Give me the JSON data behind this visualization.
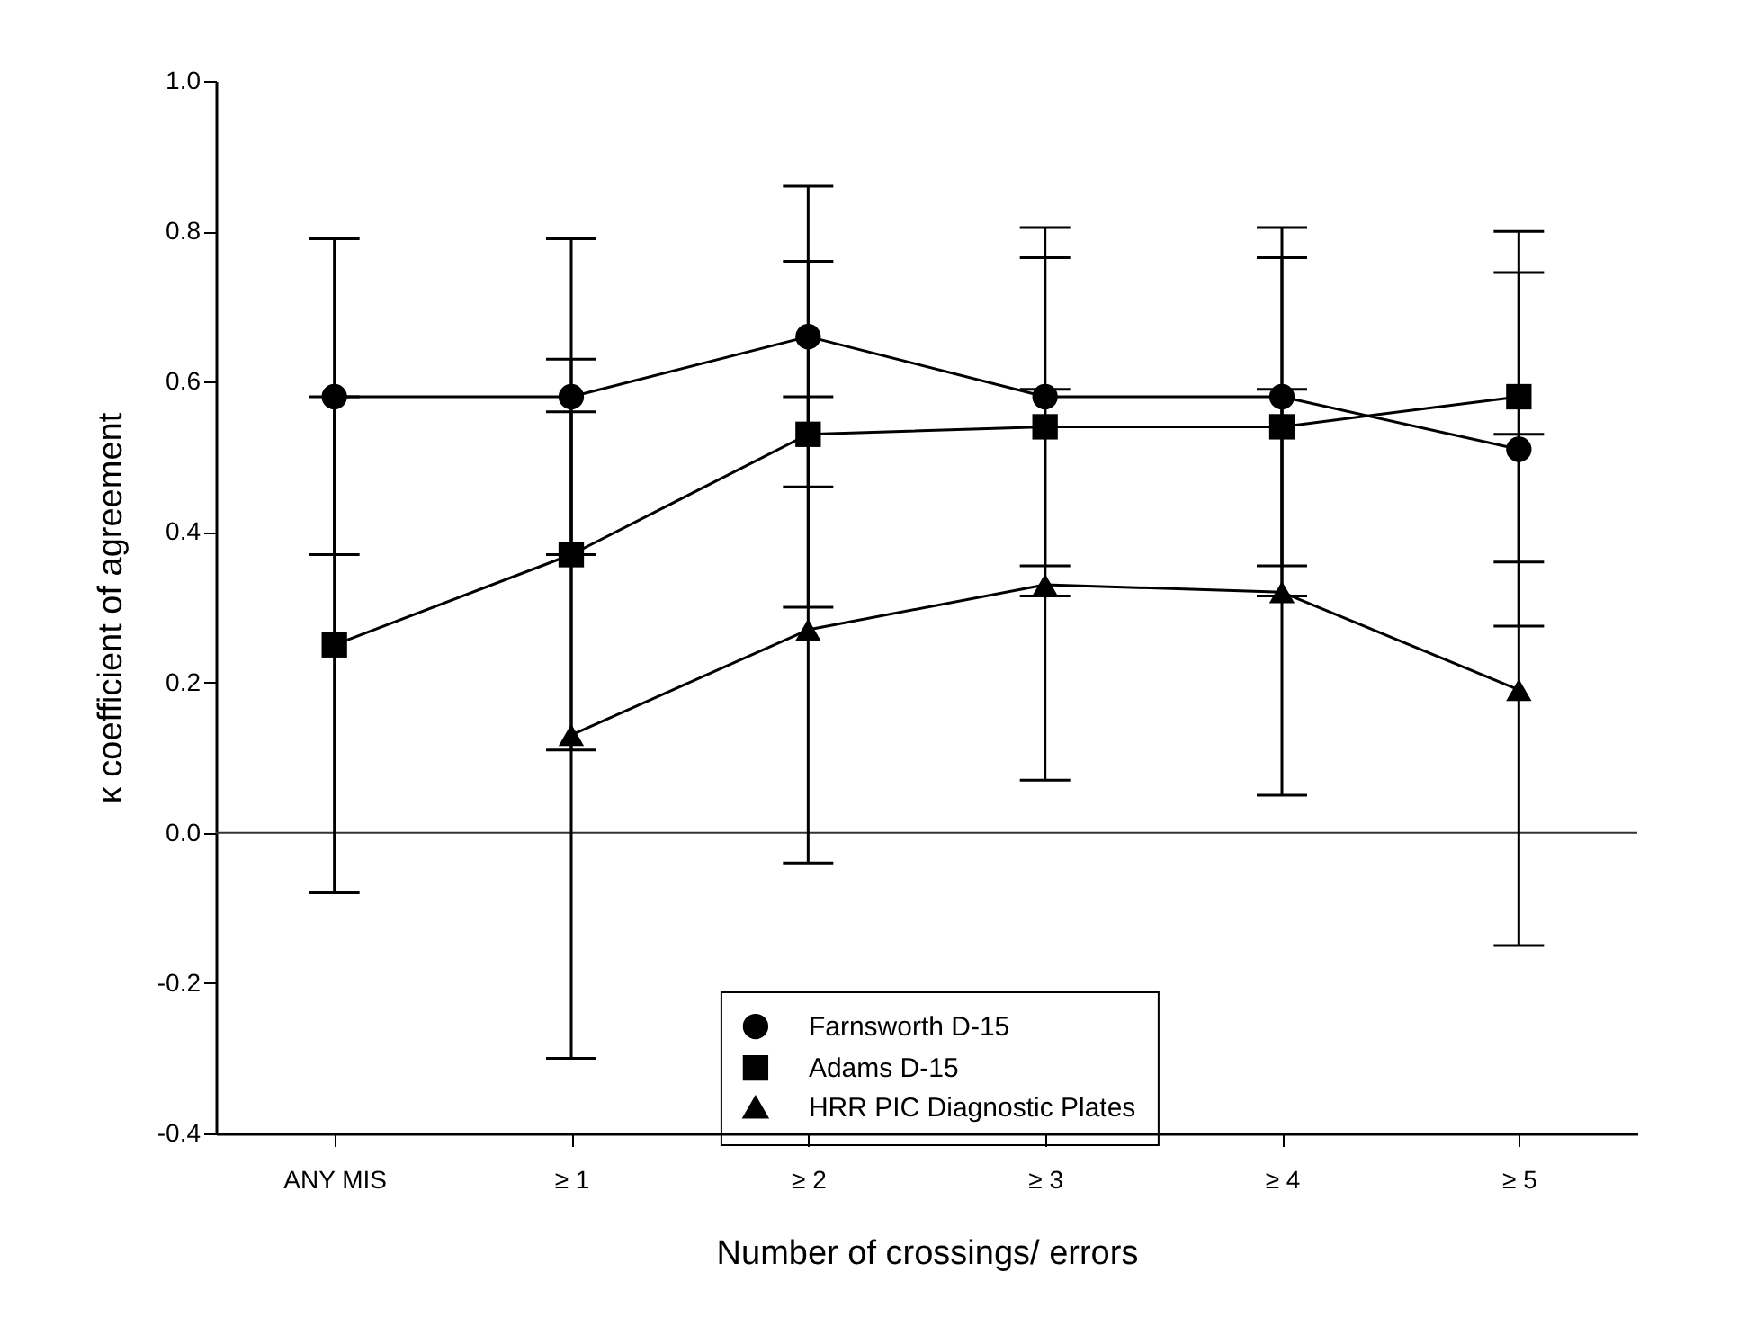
{
  "chart_data": {
    "type": "line",
    "xlabel": "Number of crossings/ errors",
    "ylabel": "κ coefficient of agreement",
    "categories": [
      "ANY MIS",
      "≥ 1",
      "≥ 2",
      "≥ 3",
      "≥ 4",
      "≥ 5"
    ],
    "series": [
      {
        "name": "Farnsworth D-15",
        "color": "#000000",
        "marker": "circle",
        "values": [
          0.58,
          0.58,
          0.66,
          0.58,
          0.58,
          0.51
        ],
        "errors": [
          0.21,
          0.21,
          0.2,
          0.225,
          0.225,
          0.235
        ]
      },
      {
        "name": "Adams  D-15",
        "color": "#000000",
        "marker": "square",
        "values": [
          0.25,
          0.37,
          0.53,
          0.54,
          0.54,
          0.58
        ],
        "errors": [
          0.33,
          0.26,
          0.23,
          0.225,
          0.225,
          0.22
        ]
      },
      {
        "name": "HRR PIC Diagnostic Plates",
        "color": "#000000",
        "marker": "triangle",
        "values": [
          null,
          0.13,
          0.27,
          0.33,
          0.32,
          0.19
        ],
        "errors": [
          null,
          0.43,
          0.31,
          0.26,
          0.27,
          0.34
        ]
      }
    ],
    "ylim": [
      -0.4,
      1.0
    ],
    "yticks": [
      {
        "value": -0.4,
        "label": "-0.4"
      },
      {
        "value": -0.2,
        "label": "-0.2"
      },
      {
        "value": 0,
        "label": "0.0"
      },
      {
        "value": 0.2,
        "label": "0.2"
      },
      {
        "value": 0.4,
        "label": "0.4"
      },
      {
        "value": 0.6,
        "label": "0.6"
      },
      {
        "value": 0.8,
        "label": "0.8"
      },
      {
        "value": 1.0,
        "label": "1.0"
      }
    ],
    "ref_lines": [
      {
        "axis": "y",
        "value": 0,
        "color": "#333333"
      }
    ],
    "grid": false,
    "legend": "bottom",
    "line_style": "solid"
  }
}
